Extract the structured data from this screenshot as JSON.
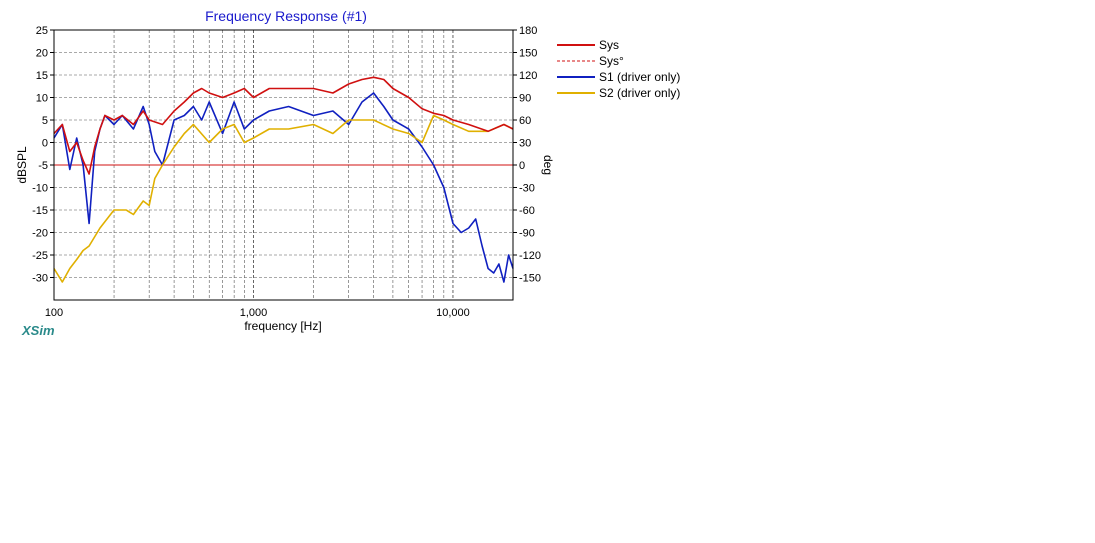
{
  "app": {
    "watermark": "XSim"
  },
  "chart_data": {
    "type": "line",
    "title": "Frequency Response (#1)",
    "xlabel": "frequency [Hz]",
    "ylabel": "dBSPL",
    "y2label": "deg",
    "xscale": "log",
    "xlim": [
      100,
      20000
    ],
    "ylim": [
      -35,
      25
    ],
    "y2lim": [
      -180,
      180
    ],
    "x_tick_labels": [
      {
        "value": 100,
        "label": "100"
      },
      {
        "value": 1000,
        "label": "1,000"
      },
      {
        "value": 10000,
        "label": "10,000"
      }
    ],
    "y_ticks": [
      25,
      20,
      15,
      10,
      5,
      0,
      -5,
      -10,
      -15,
      -20,
      -25,
      -30
    ],
    "y2_ticks": [
      180,
      150,
      120,
      90,
      60,
      30,
      0,
      -30,
      -60,
      -90,
      -120,
      -150
    ],
    "grid": true,
    "legend_position": "right",
    "series": [
      {
        "name": "Sys",
        "color": "#d01010",
        "style": "solid",
        "axis": "left",
        "x": [
          100,
          110,
          120,
          130,
          140,
          150,
          160,
          170,
          180,
          200,
          220,
          250,
          280,
          300,
          350,
          400,
          450,
          500,
          550,
          600,
          700,
          800,
          900,
          1000,
          1200,
          1500,
          2000,
          2500,
          3000,
          3500,
          4000,
          4500,
          5000,
          6000,
          7000,
          8000,
          9000,
          10000,
          12000,
          15000,
          18000,
          20000
        ],
        "y": [
          2,
          4,
          -2,
          0,
          -4,
          -7,
          -1,
          3,
          6,
          5,
          6,
          4,
          7,
          5,
          4,
          7,
          9,
          11,
          12,
          11,
          10,
          11,
          12,
          10,
          12,
          12,
          12,
          11,
          13,
          14,
          14.5,
          14,
          12,
          10,
          7.5,
          6.5,
          6,
          5,
          4,
          2.5,
          4,
          3
        ]
      },
      {
        "name": "Sys°",
        "color": "#d01010",
        "style": "dashed",
        "axis": "right",
        "x": [
          100,
          20000
        ],
        "y": [
          0,
          0
        ]
      },
      {
        "name": "S1 (driver only)",
        "color": "#1020c0",
        "style": "solid",
        "axis": "left",
        "x": [
          100,
          110,
          120,
          130,
          140,
          150,
          160,
          170,
          180,
          200,
          220,
          250,
          280,
          300,
          320,
          350,
          400,
          450,
          500,
          550,
          600,
          700,
          800,
          900,
          1000,
          1200,
          1500,
          2000,
          2500,
          3000,
          3500,
          4000,
          4500,
          5000,
          6000,
          7000,
          8000,
          9000,
          10000,
          11000,
          12000,
          13000,
          14000,
          15000,
          16000,
          17000,
          18000,
          19000,
          20000
        ],
        "y": [
          1,
          4,
          -6,
          1,
          -5,
          -18,
          -2,
          3,
          6,
          4,
          6,
          3,
          8,
          4,
          -2,
          -5,
          5,
          6,
          8,
          5,
          9,
          2,
          9,
          3,
          5,
          7,
          8,
          6,
          7,
          4,
          9,
          11,
          8,
          5,
          3,
          -1,
          -5,
          -10,
          -18,
          -20,
          -19,
          -17,
          -23,
          -28,
          -29,
          -27,
          -31,
          -25,
          -28
        ]
      },
      {
        "name": "S2 (driver only)",
        "color": "#e0b000",
        "style": "solid",
        "axis": "left",
        "x": [
          100,
          110,
          120,
          130,
          140,
          150,
          170,
          200,
          230,
          250,
          280,
          300,
          320,
          350,
          400,
          450,
          500,
          600,
          700,
          800,
          900,
          1000,
          1200,
          1500,
          2000,
          2500,
          3000,
          4000,
          5000,
          6000,
          7000,
          8000,
          9000,
          10000,
          12000,
          15000,
          18000,
          20000
        ],
        "y": [
          -28,
          -31,
          -28,
          -26,
          -24,
          -23,
          -19,
          -15,
          -15,
          -16,
          -13,
          -14,
          -8,
          -5,
          -1,
          2,
          4,
          0,
          3,
          4,
          0,
          1,
          3,
          3,
          4,
          2,
          5,
          5,
          3,
          2,
          0,
          6,
          5,
          4,
          2.5,
          2.5,
          4,
          3
        ]
      }
    ]
  }
}
